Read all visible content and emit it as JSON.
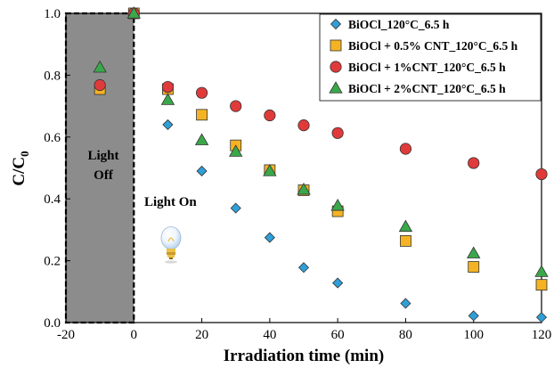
{
  "chart_data": {
    "type": "scatter",
    "xlabel": "Irradiation time (min)",
    "ylabel_main": "C/C",
    "ylabel_sub": "0",
    "xlim": [
      -20,
      120
    ],
    "ylim": [
      0,
      1.0
    ],
    "x_ticks": [
      "-20",
      "0",
      "20",
      "40",
      "60",
      "80",
      "100",
      "120"
    ],
    "y_ticks": [
      "0.0",
      "0.2",
      "0.4",
      "0.6",
      "0.8",
      "1.0"
    ],
    "grid": false,
    "legend_position": "top-right",
    "annotations": {
      "light_off_line1": "Light",
      "light_off_line2": "Off",
      "light_on": "Light On",
      "light_off_region": [
        -20,
        0
      ]
    },
    "series": [
      {
        "name": "BiOCl_120°C_6.5 h",
        "marker": "diamond",
        "color": "#2f9fd8",
        "points": [
          [
            0,
            1.0
          ],
          [
            10,
            0.64
          ],
          [
            20,
            0.49
          ],
          [
            30,
            0.37
          ],
          [
            40,
            0.275
          ],
          [
            50,
            0.178
          ],
          [
            60,
            0.128
          ],
          [
            80,
            0.062
          ],
          [
            100,
            0.022
          ],
          [
            120,
            0.017
          ]
        ]
      },
      {
        "name": "BiOCl + 0.5% CNT_120°C_6.5 h",
        "marker": "square",
        "color": "#f5b323",
        "points": [
          [
            -10,
            0.755
          ],
          [
            0,
            1.0
          ],
          [
            10,
            0.755
          ],
          [
            20,
            0.672
          ],
          [
            30,
            0.573
          ],
          [
            40,
            0.493
          ],
          [
            50,
            0.428
          ],
          [
            60,
            0.36
          ],
          [
            80,
            0.264
          ],
          [
            100,
            0.18
          ],
          [
            120,
            0.122
          ]
        ]
      },
      {
        "name": "BiOCl + 1%CNT_120°C_6.5 h",
        "marker": "circle",
        "color": "#e13a3a",
        "points": [
          [
            -10,
            0.768
          ],
          [
            0,
            1.0
          ],
          [
            10,
            0.762
          ],
          [
            20,
            0.743
          ],
          [
            30,
            0.7
          ],
          [
            40,
            0.67
          ],
          [
            50,
            0.638
          ],
          [
            60,
            0.613
          ],
          [
            80,
            0.562
          ],
          [
            100,
            0.516
          ],
          [
            120,
            0.48
          ]
        ]
      },
      {
        "name": "BiOCl + 2%CNT_120°C_6.5 h",
        "marker": "triangle",
        "color": "#3aa84a",
        "points": [
          [
            -10,
            0.825
          ],
          [
            0,
            1.0
          ],
          [
            10,
            0.72
          ],
          [
            20,
            0.59
          ],
          [
            30,
            0.553
          ],
          [
            40,
            0.49
          ],
          [
            50,
            0.43
          ],
          [
            60,
            0.378
          ],
          [
            80,
            0.31
          ],
          [
            100,
            0.224
          ],
          [
            120,
            0.164
          ]
        ]
      }
    ]
  }
}
